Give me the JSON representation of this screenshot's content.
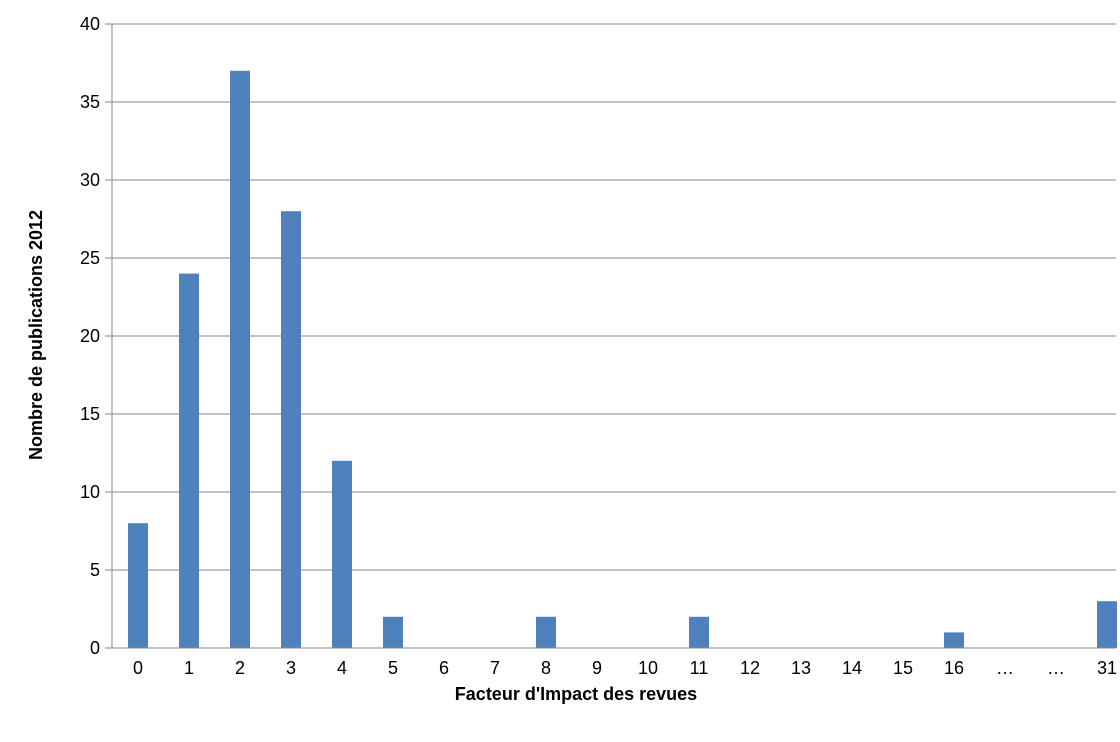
{
  "chart_data": {
    "type": "bar",
    "title": "",
    "xlabel": "Facteur d'Impact des revues",
    "ylabel": "Nombre de publications 2012",
    "categories": [
      "0",
      "1",
      "2",
      "3",
      "4",
      "5",
      "6",
      "7",
      "8",
      "9",
      "10",
      "11",
      "12",
      "13",
      "14",
      "15",
      "16",
      "…",
      "…",
      "31"
    ],
    "values": [
      8,
      24,
      37,
      28,
      12,
      2,
      0,
      0,
      2,
      0,
      0,
      2,
      0,
      0,
      0,
      0,
      1,
      0,
      0,
      3
    ],
    "ylim": [
      0,
      40
    ],
    "yticks": [
      0,
      5,
      10,
      15,
      20,
      25,
      30,
      35,
      40
    ],
    "grid": true,
    "legend": "none",
    "bar_color": "#4F81BD",
    "grid_color": "#868686"
  }
}
